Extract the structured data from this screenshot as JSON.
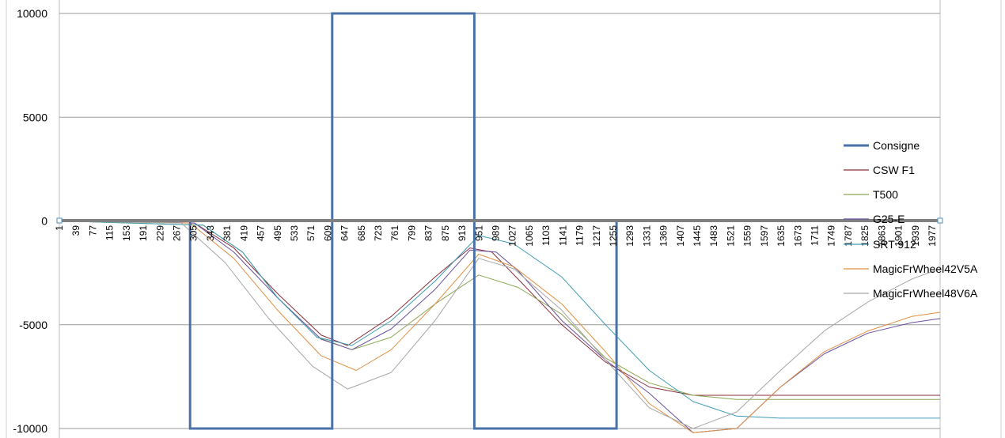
{
  "chart_data": {
    "type": "line",
    "title": "",
    "xlabel": "",
    "ylabel": "",
    "ylim": [
      -10000,
      10000
    ],
    "xlim": [
      1,
      2015
    ],
    "y_ticks": [
      10000,
      5000,
      0,
      -5000,
      -10000
    ],
    "y_tick_labels": [
      "10000",
      "5000",
      "0",
      "-5000",
      "-10000"
    ],
    "x_tick_labels": [
      "1",
      "39",
      "77",
      "115",
      "153",
      "191",
      "229",
      "267",
      "305",
      "343",
      "381",
      "419",
      "457",
      "495",
      "533",
      "571",
      "609",
      "647",
      "685",
      "723",
      "761",
      "799",
      "837",
      "875",
      "913",
      "951",
      "989",
      "1027",
      "1065",
      "1103",
      "1141",
      "1179",
      "1217",
      "1255",
      "1293",
      "1331",
      "1369",
      "1407",
      "1445",
      "1483",
      "1521",
      "1559",
      "1597",
      "1635",
      "1673",
      "1711",
      "1749",
      "1787",
      "1825",
      "1863",
      "1901",
      "1939",
      "1977"
    ],
    "grid": "horizontal",
    "legend_position": "right",
    "series": [
      {
        "name": "Consigne",
        "color": "#4a72a8",
        "width": 3,
        "x": [
          1,
          300,
          300,
          625,
          625,
          950,
          950,
          1275,
          1275,
          2015
        ],
        "y": [
          0,
          0,
          -10000,
          -10000,
          10000,
          10000,
          -10000,
          -10000,
          0,
          0
        ]
      },
      {
        "name": "CSW F1",
        "color": "#8b2f3a",
        "width": 1,
        "x": [
          1,
          310,
          400,
          500,
          600,
          660,
          760,
          860,
          940,
          990,
          1050,
          1150,
          1250,
          1350,
          1450,
          1550,
          1650,
          1750,
          1850,
          2015
        ],
        "y": [
          0,
          -100,
          -1300,
          -3500,
          -5500,
          -6000,
          -4600,
          -2700,
          -1300,
          -1500,
          -2800,
          -5000,
          -6800,
          -8000,
          -8400,
          -8400,
          -8400,
          -8400,
          -8400,
          -8400
        ]
      },
      {
        "name": "T500",
        "color": "#8aa654",
        "width": 1,
        "x": [
          1,
          330,
          420,
          500,
          590,
          670,
          760,
          860,
          960,
          1050,
          1150,
          1250,
          1350,
          1450,
          1550,
          1650,
          1750,
          1850,
          2015
        ],
        "y": [
          0,
          -200,
          -1500,
          -3700,
          -5600,
          -6200,
          -5600,
          -4000,
          -2600,
          -3200,
          -4500,
          -6600,
          -7800,
          -8400,
          -8600,
          -8600,
          -8600,
          -8600,
          -8600
        ]
      },
      {
        "name": "G25-E",
        "color": "#6a4f9c",
        "width": 1,
        "x": [
          1,
          310,
          400,
          500,
          600,
          670,
          760,
          860,
          940,
          1000,
          1050,
          1150,
          1250,
          1350,
          1450,
          1550,
          1650,
          1750,
          1850,
          1950,
          2015
        ],
        "y": [
          0,
          -100,
          -1500,
          -3700,
          -5700,
          -6200,
          -5200,
          -3300,
          -1400,
          -1500,
          -2400,
          -4800,
          -6700,
          -8300,
          -10200,
          -10000,
          -8000,
          -6400,
          -5400,
          -4900,
          -4700
        ]
      },
      {
        "name": "SRT 912",
        "color": "#3c9cb4",
        "width": 1,
        "x": [
          1,
          330,
          420,
          500,
          590,
          670,
          760,
          860,
          960,
          1040,
          1150,
          1250,
          1350,
          1450,
          1550,
          1650,
          1750,
          1850,
          2015
        ],
        "y": [
          0,
          -200,
          -1500,
          -3700,
          -5600,
          -6000,
          -4800,
          -2900,
          -700,
          -1100,
          -2700,
          -5000,
          -7200,
          -8700,
          -9400,
          -9500,
          -9500,
          -9500,
          -9500
        ]
      },
      {
        "name": "MagicFrWheel42V5A",
        "color": "#e08f43",
        "width": 1,
        "x": [
          1,
          300,
          400,
          500,
          600,
          680,
          760,
          860,
          960,
          1040,
          1150,
          1250,
          1350,
          1450,
          1550,
          1650,
          1750,
          1850,
          1950,
          2015
        ],
        "y": [
          0,
          -100,
          -1800,
          -4300,
          -6500,
          -7200,
          -6200,
          -4000,
          -1600,
          -2200,
          -4000,
          -6300,
          -8800,
          -10200,
          -10000,
          -8000,
          -6300,
          -5300,
          -4600,
          -4400
        ]
      },
      {
        "name": "MagicFrWheel48V6A",
        "color": "#a6a6a6",
        "width": 1,
        "x": [
          1,
          280,
          380,
          480,
          580,
          660,
          760,
          860,
          960,
          1040,
          1150,
          1250,
          1350,
          1450,
          1550,
          1650,
          1750,
          1850,
          1950,
          2015
        ],
        "y": [
          0,
          -100,
          -2000,
          -4700,
          -7000,
          -8100,
          -7300,
          -4800,
          -1800,
          -2300,
          -4300,
          -6700,
          -9000,
          -10000,
          -9200,
          -7200,
          -5300,
          -3900,
          -2800,
          -2300
        ]
      }
    ]
  }
}
